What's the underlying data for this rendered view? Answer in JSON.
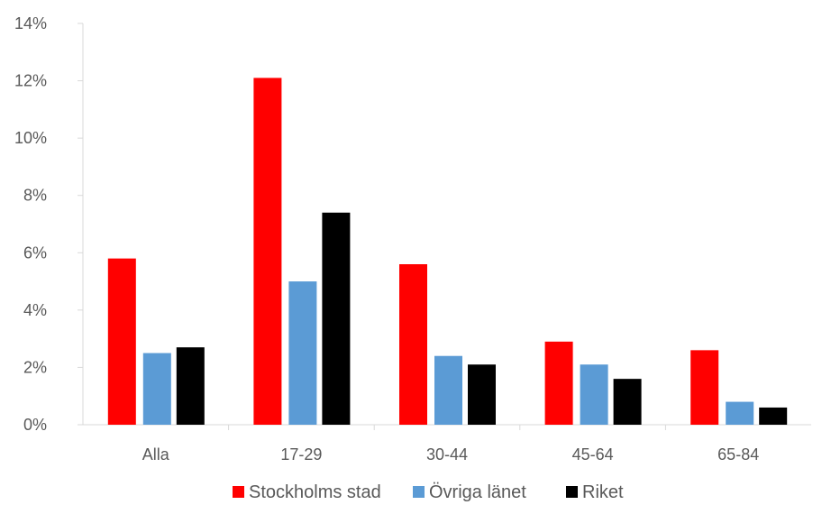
{
  "chart_data": {
    "type": "bar",
    "categories": [
      "Alla",
      "17-29",
      "30-44",
      "45-64",
      "65-84"
    ],
    "series": [
      {
        "name": "Stockholms stad",
        "color": "#ff0000",
        "values": [
          5.8,
          12.1,
          5.6,
          2.9,
          2.6
        ]
      },
      {
        "name": "Övriga länet",
        "color": "#5b9bd5",
        "values": [
          2.5,
          5.0,
          2.4,
          2.1,
          0.8
        ]
      },
      {
        "name": "Riket",
        "color": "#000000",
        "values": [
          2.7,
          7.4,
          2.1,
          1.6,
          0.6
        ]
      }
    ],
    "y_ticks": [
      "0%",
      "2%",
      "4%",
      "6%",
      "8%",
      "10%",
      "12%",
      "14%"
    ],
    "ylim": [
      0,
      14
    ],
    "y_unit": "%",
    "grid": false,
    "legend_position": "bottom"
  }
}
